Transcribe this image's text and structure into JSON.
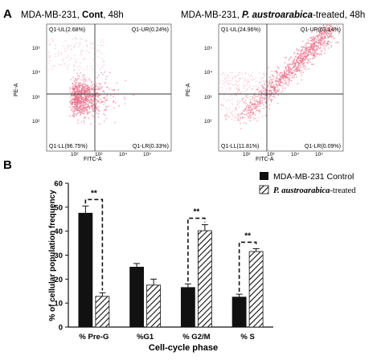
{
  "panel_labels": {
    "a": "A",
    "b": "B"
  },
  "chart_data": [
    {
      "type": "scatter",
      "title_prefix": "MDA-MB-231, ",
      "title_bold": "Cont",
      "title_suffix": ", 48h",
      "xlabel": "FITC-A",
      "ylabel": "PE-A",
      "scale": "log",
      "ticks": [
        "10²",
        "10³",
        "10⁴",
        "10⁵"
      ],
      "quadrants": {
        "UL": "Q1-UL(2.68%)",
        "UR": "Q1-UR(0.24%)",
        "LL": "Q1-LL(96.75%)",
        "LR": "Q1-LR(0.33%)"
      },
      "dot_color": "#e9708a"
    },
    {
      "type": "scatter",
      "title_prefix": "MDA-MB-231, ",
      "title_bold": "P. austroarabica",
      "title_suffix": "-treated, 48h",
      "xlabel": "FITC-A",
      "ylabel": "PE-A",
      "scale": "log",
      "ticks": [
        "10²",
        "10³",
        "10⁴",
        "10⁵"
      ],
      "quadrants": {
        "UL": "Q1-UL(24.96%)",
        "UR": "Q1-UR(63.14%)",
        "LL": "Q1-LL(11.81%)",
        "LR": "Q1-LR(0.09%)"
      },
      "dot_color": "#e9708a"
    },
    {
      "type": "bar",
      "xlabel": "Cell-cycle phase",
      "ylabel": "% of cellular population frequency",
      "categories": [
        "% Pre-G",
        "%G1",
        "% G2/M",
        "% S"
      ],
      "ylim": [
        0,
        60
      ],
      "yticks": [
        0,
        10,
        20,
        30,
        40,
        50,
        60
      ],
      "series": [
        {
          "name": "MDA-MB-231 Control",
          "values": [
            47.5,
            25,
            16.5,
            12.5
          ],
          "errors": [
            3,
            1.5,
            1.5,
            1.2
          ],
          "color": "#111111",
          "pattern": "solid"
        },
        {
          "name_bold": "P. austroarabica",
          "name_suffix": "-treated",
          "values": [
            12.8,
            17.5,
            40.2,
            31.5
          ],
          "errors": [
            1.5,
            2.5,
            2.5,
            1.2
          ],
          "color": "#111111",
          "pattern": "hatch"
        }
      ],
      "significance": [
        "**",
        "**",
        "**"
      ],
      "legend_position": "top-right"
    }
  ]
}
